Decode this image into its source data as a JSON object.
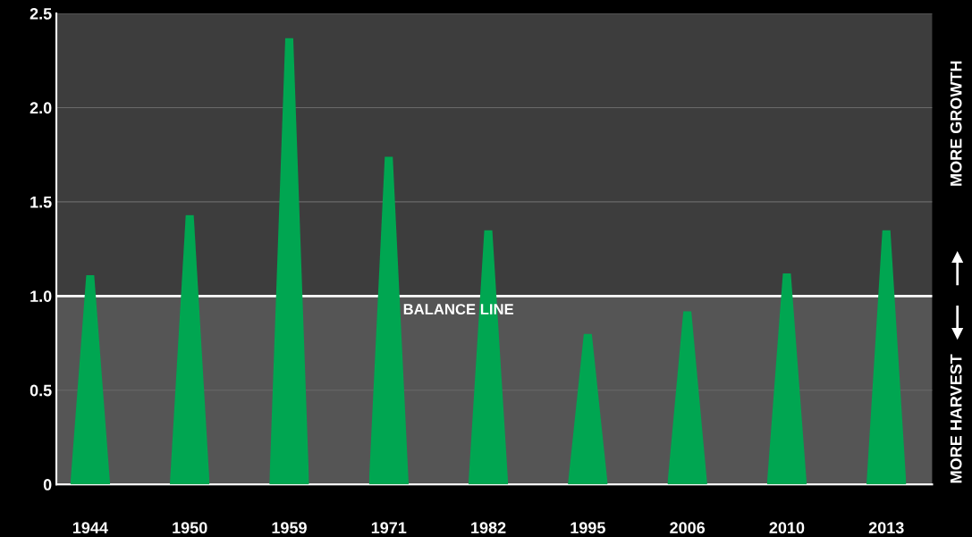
{
  "chart_data": {
    "type": "bar",
    "categories": [
      "1944",
      "1950",
      "1959",
      "1971",
      "1982",
      "1995",
      "2006",
      "2010",
      "2013"
    ],
    "values": [
      1.11,
      1.43,
      2.37,
      1.74,
      1.35,
      0.8,
      0.92,
      1.12,
      1.35
    ],
    "color": "#00a651",
    "ylim": [
      0,
      2.5
    ],
    "yticks": [
      0,
      0.5,
      {
        "value": 1,
        "label": "1.0"
      },
      1.5,
      {
        "value": 2,
        "label": "2.0"
      },
      2.5
    ],
    "grid": "y",
    "ref_lines": [
      {
        "axis": "y",
        "value": 1.0,
        "label": "BALANCE LINE",
        "color": "#ffffff"
      }
    ],
    "bands": [
      {
        "axis": "y",
        "from": 0,
        "to": 1.0,
        "color": "#555555"
      }
    ],
    "annotations": [
      "MORE GROWTH",
      "MORE HARVEST"
    ]
  }
}
